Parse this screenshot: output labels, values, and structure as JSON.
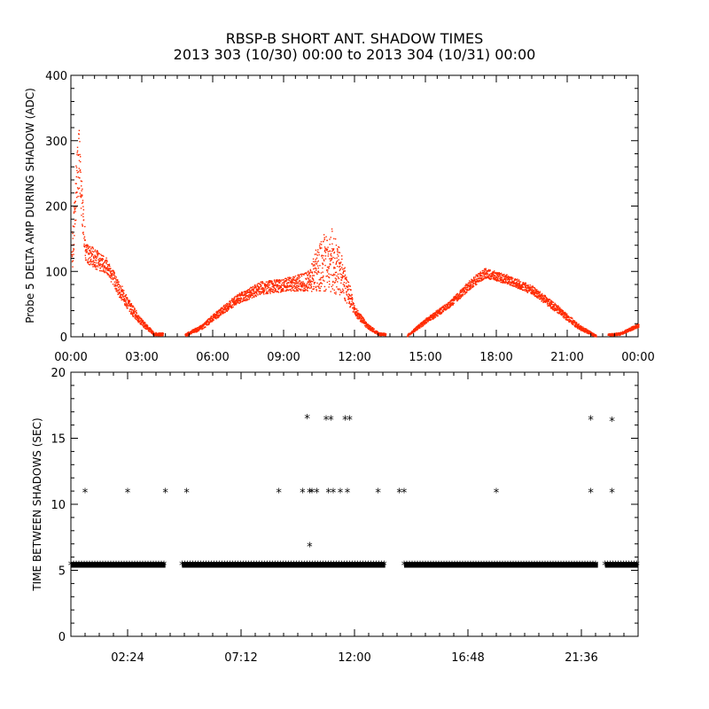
{
  "title": {
    "line1": "RBSP-B SHORT ANT. SHADOW TIMES",
    "line2": "2013 303 (10/30) 00:00 to 2013 304 (10/31) 00:00"
  },
  "colors": {
    "amp_points": "#ff2a00",
    "shadow_points": "#000000",
    "axes": "#000000"
  },
  "chart_data": [
    {
      "type": "scatter",
      "ylabel": "Probe 5 DELTA AMP DURING SHADOW (ADC)",
      "xlim": [
        0,
        24
      ],
      "ylim": [
        0,
        400
      ],
      "x_unit": "hours",
      "x_ticks": [
        "00:00",
        "03:00",
        "06:00",
        "09:00",
        "12:00",
        "15:00",
        "18:00",
        "21:00",
        "00:00"
      ],
      "y_ticks": [
        "0",
        "100",
        "200",
        "300",
        "400"
      ],
      "marker": "dot",
      "envelope": [
        {
          "x": 0.0,
          "y": 110,
          "spread": 50
        },
        {
          "x": 0.3,
          "y": 280,
          "spread": 110
        },
        {
          "x": 0.6,
          "y": 130,
          "spread": 30
        },
        {
          "x": 1.0,
          "y": 120,
          "spread": 30
        },
        {
          "x": 1.5,
          "y": 110,
          "spread": 25
        },
        {
          "x": 2.0,
          "y": 75,
          "spread": 25
        },
        {
          "x": 2.5,
          "y": 45,
          "spread": 18
        },
        {
          "x": 3.0,
          "y": 22,
          "spread": 10
        },
        {
          "x": 3.5,
          "y": 5,
          "spread": 5
        },
        {
          "x": 4.8,
          "y": 3,
          "spread": 4
        },
        {
          "x": 5.5,
          "y": 15,
          "spread": 8
        },
        {
          "x": 6.0,
          "y": 30,
          "spread": 10
        },
        {
          "x": 7.0,
          "y": 58,
          "spread": 15
        },
        {
          "x": 8.0,
          "y": 75,
          "spread": 20
        },
        {
          "x": 9.0,
          "y": 80,
          "spread": 20
        },
        {
          "x": 10.0,
          "y": 85,
          "spread": 30
        },
        {
          "x": 10.5,
          "y": 110,
          "spread": 80
        },
        {
          "x": 11.0,
          "y": 120,
          "spread": 100
        },
        {
          "x": 11.5,
          "y": 90,
          "spread": 60
        },
        {
          "x": 12.0,
          "y": 40,
          "spread": 15
        },
        {
          "x": 12.5,
          "y": 18,
          "spread": 8
        },
        {
          "x": 13.0,
          "y": 5,
          "spread": 4
        },
        {
          "x": 14.2,
          "y": 2,
          "spread": 3
        },
        {
          "x": 15.0,
          "y": 25,
          "spread": 8
        },
        {
          "x": 16.0,
          "y": 50,
          "spread": 10
        },
        {
          "x": 17.0,
          "y": 85,
          "spread": 15
        },
        {
          "x": 17.5,
          "y": 98,
          "spread": 15
        },
        {
          "x": 18.5,
          "y": 88,
          "spread": 14
        },
        {
          "x": 19.5,
          "y": 72,
          "spread": 14
        },
        {
          "x": 20.5,
          "y": 45,
          "spread": 12
        },
        {
          "x": 21.5,
          "y": 15,
          "spread": 8
        },
        {
          "x": 22.2,
          "y": 2,
          "spread": 3
        },
        {
          "x": 23.2,
          "y": 5,
          "spread": 4
        },
        {
          "x": 24.0,
          "y": 18,
          "spread": 6
        }
      ],
      "gaps": [
        [
          3.9,
          4.8
        ],
        [
          13.3,
          14.2
        ],
        [
          22.2,
          22.7
        ]
      ]
    },
    {
      "type": "scatter",
      "ylabel": "TIME BETWEEN SHADOWS (SEC)",
      "xlim": [
        0,
        24
      ],
      "ylim": [
        0,
        20
      ],
      "x_unit": "hours",
      "x_ticks": [
        "02:24",
        "07:12",
        "12:00",
        "16:48",
        "21:36"
      ],
      "y_ticks": [
        "0",
        "5",
        "10",
        "15",
        "20"
      ],
      "marker": "asterisk",
      "baseline": {
        "y": 5.4,
        "segments": [
          [
            0.0,
            4.0
          ],
          [
            4.7,
            13.3
          ],
          [
            14.1,
            22.3
          ],
          [
            22.6,
            24.0
          ]
        ]
      },
      "points": [
        {
          "x": 0.6,
          "y": 10.9
        },
        {
          "x": 2.4,
          "y": 10.9
        },
        {
          "x": 4.0,
          "y": 10.9
        },
        {
          "x": 4.9,
          "y": 10.9
        },
        {
          "x": 8.8,
          "y": 10.9
        },
        {
          "x": 9.8,
          "y": 10.9
        },
        {
          "x": 10.0,
          "y": 16.5
        },
        {
          "x": 10.1,
          "y": 10.9
        },
        {
          "x": 10.2,
          "y": 10.9
        },
        {
          "x": 10.4,
          "y": 10.9
        },
        {
          "x": 10.1,
          "y": 6.8
        },
        {
          "x": 10.8,
          "y": 16.4
        },
        {
          "x": 11.0,
          "y": 16.4
        },
        {
          "x": 10.9,
          "y": 10.9
        },
        {
          "x": 11.1,
          "y": 10.9
        },
        {
          "x": 11.4,
          "y": 10.9
        },
        {
          "x": 11.6,
          "y": 16.4
        },
        {
          "x": 11.8,
          "y": 16.4
        },
        {
          "x": 11.7,
          "y": 10.9
        },
        {
          "x": 13.0,
          "y": 10.9
        },
        {
          "x": 13.9,
          "y": 10.9
        },
        {
          "x": 14.1,
          "y": 10.9
        },
        {
          "x": 18.0,
          "y": 10.9
        },
        {
          "x": 22.0,
          "y": 16.4
        },
        {
          "x": 22.0,
          "y": 10.9
        },
        {
          "x": 22.9,
          "y": 16.3
        },
        {
          "x": 22.9,
          "y": 10.9
        }
      ]
    }
  ]
}
